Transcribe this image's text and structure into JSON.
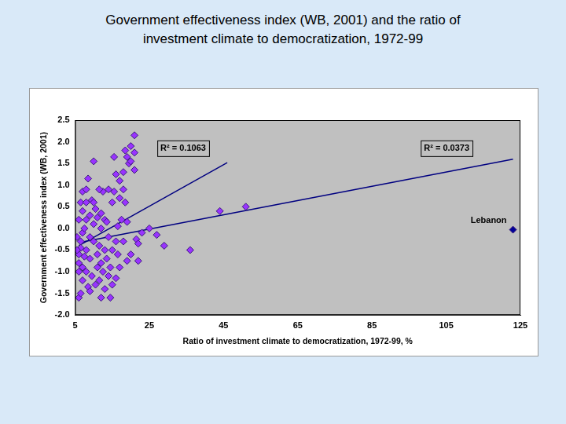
{
  "chart_data": {
    "type": "scatter",
    "title": [
      "Government effectiveness index (WB, 2001)  and the ratio of",
      "investment climate to democratization, 1972-99"
    ],
    "x_label": "Ratio of investment climate to democratization, 1972-99, %",
    "y_label": "Government effectiveness index (WB, 2001)",
    "xlim": [
      5,
      125
    ],
    "xticks": [
      5,
      25,
      45,
      65,
      85,
      105,
      125
    ],
    "ylim": [
      -2.0,
      2.5
    ],
    "yticks": [
      {
        "value": -2.0,
        "label": "-2.0"
      },
      -1.5,
      {
        "value": -1.0,
        "label": "-1.0"
      },
      -0.5,
      {
        "value": 0.0,
        "label": "0.0"
      },
      0.5,
      {
        "value": 1.0,
        "label": "1.0"
      },
      1.5,
      {
        "value": 2.0,
        "label": "2.0"
      },
      2.5
    ],
    "grid": false,
    "series": [
      {
        "type": "scatter",
        "marker": "diamond",
        "color": "#9933ff",
        "x": [
          6,
          6.5,
          6,
          7,
          6,
          6.5,
          7,
          6,
          7,
          6.5,
          7,
          6,
          7,
          6.5,
          7.5,
          8,
          8,
          8.5,
          8,
          8,
          8.5,
          9,
          9,
          9,
          9.5,
          9.5,
          10,
          10,
          10,
          10.5,
          10.5,
          11,
          11,
          11,
          11.5,
          11.5,
          12,
          12,
          12,
          12.5,
          12.5,
          13,
          13,
          13,
          13.5,
          13.5,
          14,
          14,
          14,
          14.5,
          14.5,
          15,
          15,
          15,
          15.5,
          15.5,
          16,
          16,
          16,
          16.5,
          16.5,
          17,
          17,
          17,
          17.5,
          18,
          18,
          18,
          18.5,
          18.5,
          19,
          19,
          19,
          19.5,
          20,
          20,
          20,
          21,
          21,
          21,
          21.5,
          22,
          22,
          23,
          25,
          27,
          29,
          36,
          44,
          51,
          5.5,
          5.5,
          7.5,
          8,
          9,
          10,
          11.5,
          12
        ],
        "values": [
          -1.6,
          -1.5,
          -1.0,
          -0.9,
          -0.6,
          -0.3,
          -0.1,
          0.2,
          0.4,
          0.6,
          0.85,
          -0.8,
          -1.2,
          -0.45,
          0.0,
          -0.5,
          0.9,
          1.15,
          0.6,
          -1.0,
          -1.35,
          -0.2,
          0.3,
          -0.7,
          0.65,
          -1.1,
          1.55,
          -0.3,
          0.1,
          -1.3,
          0.45,
          -0.6,
          -0.9,
          0.25,
          -1.2,
          -0.4,
          0.0,
          0.35,
          -0.8,
          -1.0,
          0.85,
          -0.5,
          0.2,
          -1.4,
          -0.7,
          0.15,
          -1.1,
          0.9,
          -0.2,
          -1.6,
          -0.9,
          -0.5,
          0.6,
          -1.3,
          1.65,
          0.85,
          -0.3,
          1.25,
          -1.15,
          0.05,
          -0.6,
          0.7,
          1.1,
          -0.9,
          0.2,
          1.3,
          0.9,
          -0.3,
          0.6,
          1.8,
          1.65,
          -0.75,
          0.15,
          1.5,
          1.9,
          1.55,
          -0.6,
          2.15,
          1.75,
          1.35,
          -0.25,
          -0.35,
          -0.75,
          -0.1,
          0.0,
          -0.15,
          -0.4,
          -0.5,
          0.4,
          0.5,
          -0.2,
          -0.5,
          -0.65,
          0.2,
          -1.45,
          0.6,
          0.9,
          -1.6
        ]
      },
      {
        "type": "scatter",
        "name": "Lebanon",
        "marker": "diamond",
        "color": "#000099",
        "x": [
          123
        ],
        "values": [
          -0.03
        ]
      },
      {
        "type": "line",
        "line_style": "solid",
        "color": "#000080",
        "x": [
          6,
          46
        ],
        "values": [
          -0.4,
          1.52
        ]
      },
      {
        "type": "line",
        "line_style": "solid",
        "color": "#000080",
        "x": [
          6,
          123
        ],
        "values": [
          -0.33,
          1.6
        ]
      }
    ],
    "annotations": [
      {
        "text": "R² = 0.1063",
        "x": 28,
        "y": 1.85
      },
      {
        "text": "R² = 0.0373",
        "x": 99,
        "y": 1.85
      }
    ]
  }
}
